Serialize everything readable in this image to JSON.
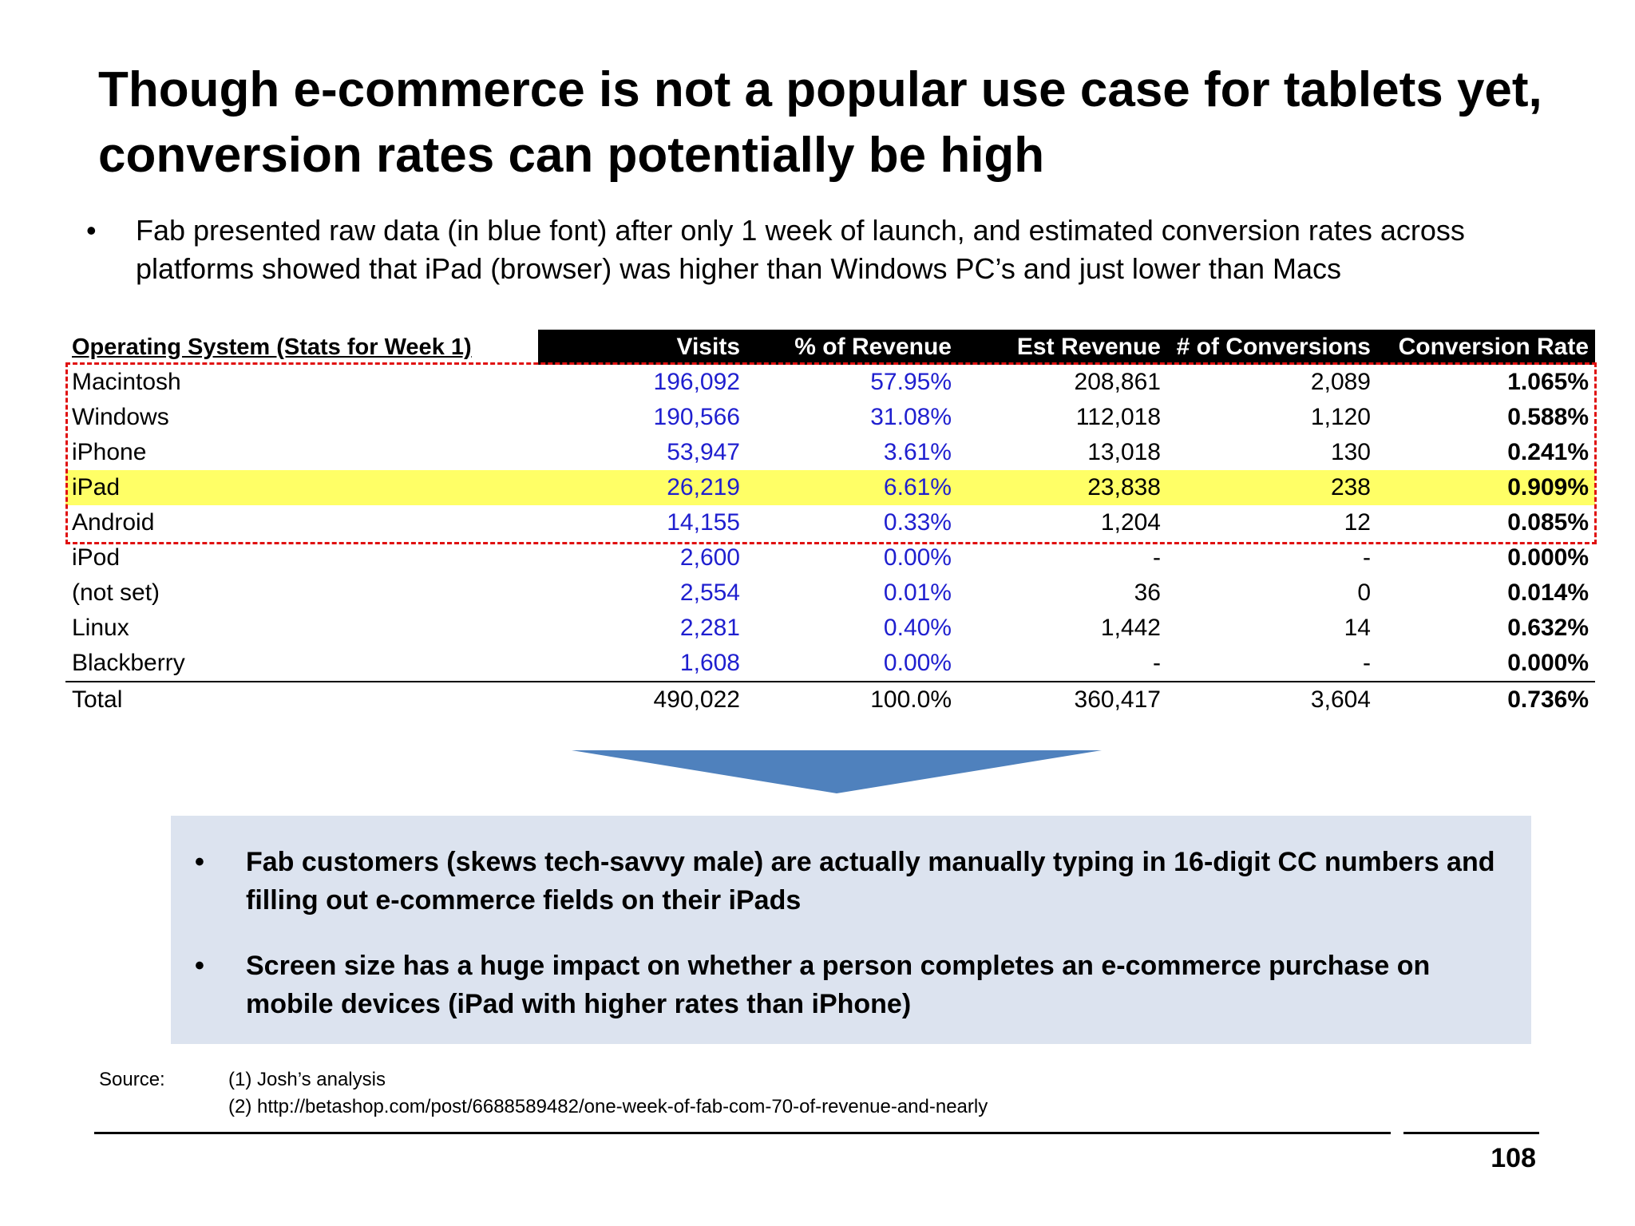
{
  "title": "Though e-commerce is not a popular use case for tablets yet, conversion rates can potentially be high",
  "intro_bullet": "Fab presented raw data (in blue font) after only 1 week of launch, and estimated conversion rates across platforms showed that iPad (browser) was higher than Windows PC’s and just lower than Macs",
  "table": {
    "headers": [
      "Operating System (Stats for Week 1)",
      "Visits",
      "% of Revenue",
      "Est Revenue",
      "# of Conversions",
      "Conversion Rate"
    ],
    "rows": [
      [
        "Macintosh",
        "196,092",
        "57.95%",
        "208,861",
        "2,089",
        "1.065%"
      ],
      [
        "Windows",
        "190,566",
        "31.08%",
        "112,018",
        "1,120",
        "0.588%"
      ],
      [
        "iPhone",
        "53,947",
        "3.61%",
        "13,018",
        "130",
        "0.241%"
      ],
      [
        "iPad",
        "26,219",
        "6.61%",
        "23,838",
        "238",
        "0.909%"
      ],
      [
        "Android",
        "14,155",
        "0.33%",
        "1,204",
        "12",
        "0.085%"
      ],
      [
        "iPod",
        "2,600",
        "0.00%",
        "-",
        "-",
        "0.000%"
      ],
      [
        "(not set)",
        "2,554",
        "0.01%",
        "36",
        "0",
        "0.014%"
      ],
      [
        "Linux",
        "2,281",
        "0.40%",
        "1,442",
        "14",
        "0.632%"
      ],
      [
        "Blackberry",
        "1,608",
        "0.00%",
        "-",
        "-",
        "0.000%"
      ]
    ],
    "total": [
      "Total",
      "490,022",
      "100.0%",
      "360,417",
      "3,604",
      "0.736%"
    ],
    "highlighted_row": "iPad",
    "raw_data_color": "#1f1fcf",
    "highlight_color": "#ffff66",
    "dashed_box_color": "#e01010"
  },
  "callout": {
    "bullets": [
      "Fab customers (skews tech-savvy male) are actually manually typing in 16-digit CC numbers and filling out e-commerce fields on their iPads",
      "Screen size has a huge impact on whether a person completes an e-commerce purchase on mobile devices (iPad with higher rates than iPhone)"
    ],
    "background": "#dce3ef",
    "arrow_color": "#4f81bd"
  },
  "source": {
    "label": "Source:",
    "lines": [
      "(1) Josh’s analysis",
      "(2) http://betashop.com/post/6688589482/one-week-of-fab-com-70-of-revenue-and-nearly"
    ]
  },
  "page_number": "108"
}
